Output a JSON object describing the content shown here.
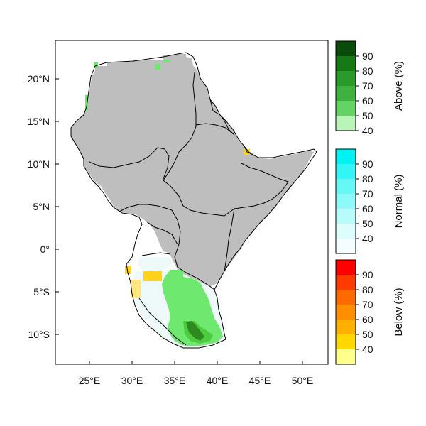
{
  "map": {
    "x_ticks": [
      {
        "value": 25,
        "label": "25°E"
      },
      {
        "value": 30,
        "label": "30°E"
      },
      {
        "value": 35,
        "label": "35°E"
      },
      {
        "value": 40,
        "label": "40°E"
      },
      {
        "value": 45,
        "label": "45°E"
      },
      {
        "value": 50,
        "label": "50°E"
      }
    ],
    "y_ticks": [
      {
        "value": 20,
        "label": "20°N"
      },
      {
        "value": 15,
        "label": "15°N"
      },
      {
        "value": 10,
        "label": "10°N"
      },
      {
        "value": 5,
        "label": "5°N"
      },
      {
        "value": 0,
        "label": "0°"
      },
      {
        "value": -5,
        "label": "5°S"
      },
      {
        "value": -10,
        "label": "10°S"
      }
    ],
    "lon_range": [
      21,
      53
    ],
    "lat_range": [
      -13.5,
      24.5
    ],
    "colors": {
      "no_signal": "#bebebe",
      "normal_low": "#eef9f9",
      "above_50": "#6ee86e",
      "above_60": "#4ecb3e",
      "above_80": "#2c8a1e",
      "below_40": "#ffe680",
      "below_50": "#ffd21e",
      "border": "#000000"
    }
  },
  "colorbars": [
    {
      "title": "Above (%)",
      "labels": [
        "90",
        "80",
        "70",
        "60",
        "50",
        "40"
      ],
      "colors": [
        "#0a4a0a",
        "#157a15",
        "#2a9a2a",
        "#3fb13f",
        "#63d463",
        "#b9f5b9"
      ]
    },
    {
      "title": "Normal (%)",
      "labels": [
        "90",
        "80",
        "70",
        "60",
        "50",
        "40"
      ],
      "colors": [
        "#00f2f2",
        "#33f5f5",
        "#66f7f7",
        "#8ef9f9",
        "#b8fbfb",
        "#ddfdfd",
        "#f4fefe"
      ]
    },
    {
      "title": "Below (%)",
      "labels": [
        "90",
        "80",
        "70",
        "60",
        "50",
        "40"
      ],
      "colors": [
        "#ff0000",
        "#ff3a00",
        "#ff6a00",
        "#ff8f00",
        "#ffb000",
        "#ffd800",
        "#ffff8c"
      ]
    }
  ]
}
